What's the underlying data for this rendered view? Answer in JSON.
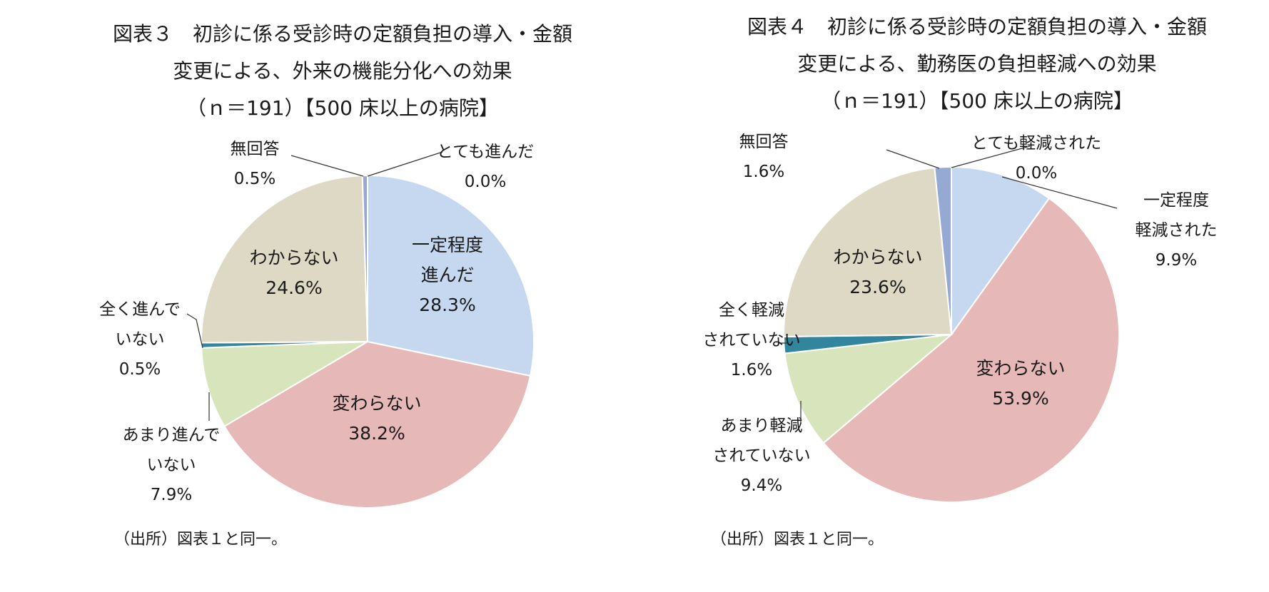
{
  "chart_data": [
    {
      "type": "pie",
      "title_lines": [
        "図表３　初診に係る受診時の定額負担の導入・金額",
        "変更による、外来の機能分化への効果",
        "（ｎ＝191）【500 床以上の病院】"
      ],
      "source": "（出所）図表１と同一。",
      "slices": [
        {
          "label_lines": [
            "とても進んだ"
          ],
          "value": 0.0,
          "value_label": "0.0%",
          "color": "#4f6fb5"
        },
        {
          "label_lines": [
            "一定程度",
            "進んだ"
          ],
          "value": 28.3,
          "value_label": "28.3%",
          "color": "#c6d8f0"
        },
        {
          "label_lines": [
            "変わらない"
          ],
          "value": 38.2,
          "value_label": "38.2%",
          "color": "#e6b8b7"
        },
        {
          "label_lines": [
            "あまり進んで",
            "いない"
          ],
          "value": 7.9,
          "value_label": "7.9%",
          "color": "#d8e4bc"
        },
        {
          "label_lines": [
            "全く進んで",
            "いない"
          ],
          "value": 0.5,
          "value_label": "0.5%",
          "color": "#31859c"
        },
        {
          "label_lines": [
            "わからない"
          ],
          "value": 24.6,
          "value_label": "24.6%",
          "color": "#ddd9c4"
        },
        {
          "label_lines": [
            "無回答"
          ],
          "value": 0.5,
          "value_label": "0.5%",
          "color": "#95a9d3"
        }
      ]
    },
    {
      "type": "pie",
      "title_lines": [
        "図表４　初診に係る受診時の定額負担の導入・金額",
        "変更による、勤務医の負担軽減への効果",
        "（ｎ＝191）【500 床以上の病院】"
      ],
      "source": "（出所）図表１と同一。",
      "slices": [
        {
          "label_lines": [
            "とても軽減された"
          ],
          "value": 0.0,
          "value_label": "0.0%",
          "color": "#4f6fb5"
        },
        {
          "label_lines": [
            "一定程度",
            "軽減された"
          ],
          "value": 9.9,
          "value_label": "9.9%",
          "color": "#c6d8f0"
        },
        {
          "label_lines": [
            "変わらない"
          ],
          "value": 53.9,
          "value_label": "53.9%",
          "color": "#e6b8b7"
        },
        {
          "label_lines": [
            "あまり軽減",
            "されていない"
          ],
          "value": 9.4,
          "value_label": "9.4%",
          "color": "#d8e4bc"
        },
        {
          "label_lines": [
            "全く軽減",
            "されていない"
          ],
          "value": 1.6,
          "value_label": "1.6%",
          "color": "#31859c"
        },
        {
          "label_lines": [
            "わからない"
          ],
          "value": 23.6,
          "value_label": "23.6%",
          "color": "#ddd9c4"
        },
        {
          "label_lines": [
            "無回答"
          ],
          "value": 1.6,
          "value_label": "1.6%",
          "color": "#95a9d3"
        }
      ]
    }
  ]
}
